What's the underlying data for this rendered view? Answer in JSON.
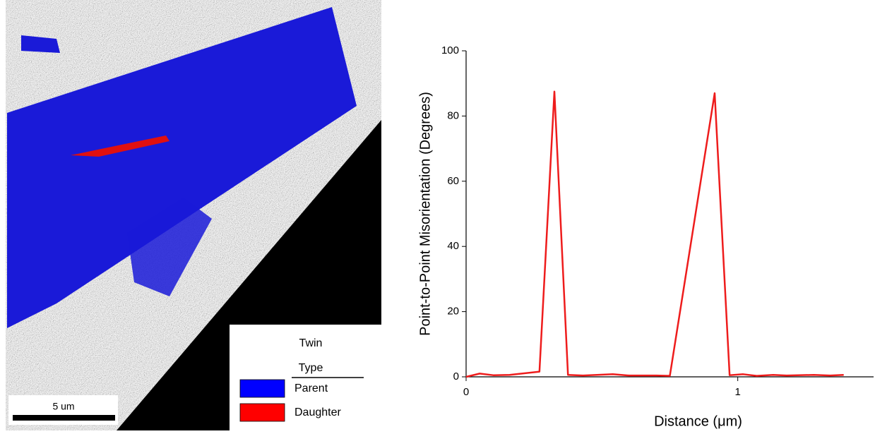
{
  "chart_data": {
    "type": "line",
    "xlabel": "Distance (μm)",
    "ylabel": "Point-to-Point Misorientation (Degrees)",
    "x": [
      0,
      0.05,
      0.1,
      0.16,
      0.27,
      0.325,
      0.375,
      0.43,
      0.54,
      0.6,
      0.7,
      0.75,
      0.915,
      0.97,
      1.02,
      1.07,
      1.13,
      1.18,
      1.28,
      1.34,
      1.39
    ],
    "series": [
      {
        "name": null,
        "color": "#ee1c1c",
        "values": [
          0,
          1,
          0.5,
          0.6,
          1.6,
          87.5,
          0.6,
          0.4,
          0.8,
          0.4,
          0.4,
          0.3,
          87,
          0.5,
          0.8,
          0.3,
          0.6,
          0.4,
          0.6,
          0.4,
          0.6
        ]
      }
    ],
    "xlim": [
      0,
      1.5
    ],
    "xticks": [
      0,
      1
    ],
    "ylim": [
      0,
      100
    ],
    "yticks": [
      0,
      20,
      40,
      60,
      80,
      100
    ]
  },
  "map": {
    "scale_bar": "5 um",
    "legend": {
      "title": [
        "Twin",
        "Type"
      ],
      "items": [
        {
          "name": "Parent",
          "color": "#0000ff"
        },
        {
          "name": "Daughter",
          "color": "#ff0000"
        }
      ]
    }
  }
}
